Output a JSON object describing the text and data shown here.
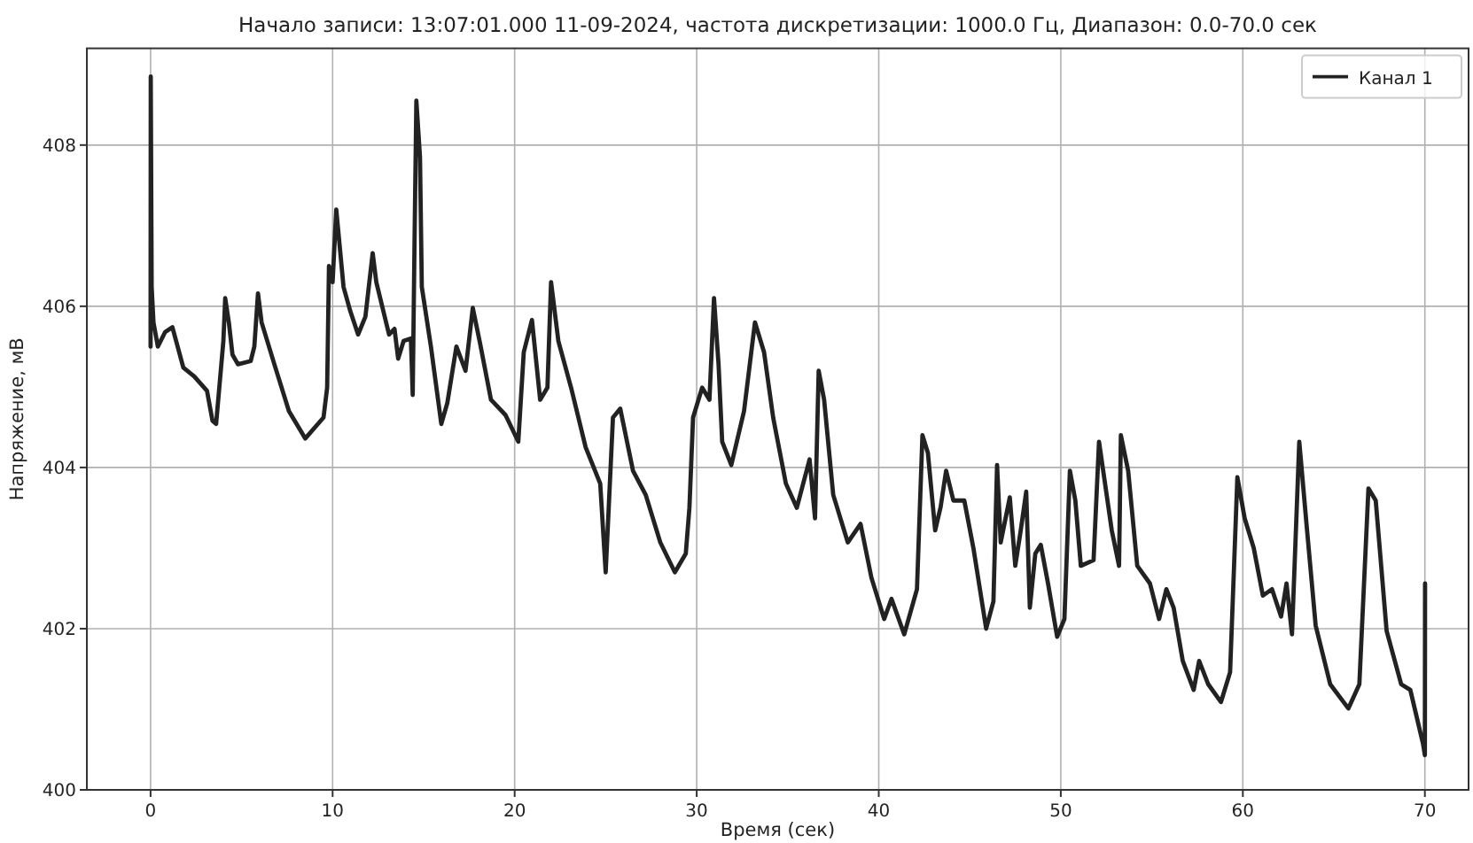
{
  "chart_data": {
    "type": "line",
    "title": "Начало записи: 13:07:01.000 11-09-2024, частота дискретизации: 1000.0 Гц, Диапазон: 0.0-70.0 сек",
    "xlabel": "Время (сек)",
    "ylabel": "Напряжение, мВ",
    "xlim": [
      -3.5,
      72.4
    ],
    "ylim": [
      400,
      409.2
    ],
    "xticks": [
      0,
      10,
      20,
      30,
      40,
      50,
      60,
      70
    ],
    "yticks": [
      400,
      402,
      404,
      406,
      408
    ],
    "grid": true,
    "legend": "top right",
    "line_style": "solid",
    "series": [
      {
        "name": "Канал 1",
        "color": "#222222",
        "x": [
          0,
          0.01,
          0.06,
          0.16,
          0.4,
          0.8,
          1.2,
          1.8,
          2.4,
          3.1,
          3.4,
          3.6,
          4.0,
          4.1,
          4.3,
          4.5,
          4.8,
          5.5,
          5.7,
          5.9,
          6.1,
          6.8,
          7.6,
          8.5,
          9.5,
          9.7,
          9.8,
          10.0,
          10.2,
          10.6,
          10.97,
          11.4,
          11.8,
          12.2,
          12.4,
          13.1,
          13.4,
          13.6,
          13.9,
          14.3,
          14.4,
          14.5,
          14.6,
          14.8,
          14.9,
          15.4,
          15.97,
          16.3,
          16.8,
          17.3,
          17.7,
          18.1,
          18.7,
          19.5,
          20.2,
          20.5,
          20.95,
          21.4,
          21.8,
          22.0,
          22.4,
          23.1,
          23.9,
          24.7,
          25.0,
          25.2,
          25.4,
          25.8,
          26.5,
          27.2,
          28.0,
          28.8,
          29.4,
          29.6,
          29.8,
          30.3,
          30.7,
          30.95,
          31.2,
          31.4,
          31.9,
          32.6,
          33.2,
          33.7,
          34.2,
          34.9,
          35.5,
          36.2,
          36.5,
          36.7,
          37.0,
          37.5,
          38.3,
          39.0,
          39.6,
          40.3,
          40.7,
          41.4,
          42.1,
          42.4,
          42.7,
          43.1,
          43.4,
          43.7,
          44.1,
          44.7,
          45.2,
          45.9,
          46.3,
          46.5,
          46.7,
          47.2,
          47.5,
          47.8,
          48.1,
          48.3,
          48.6,
          48.9,
          49.3,
          49.8,
          50.2,
          50.5,
          50.8,
          51.1,
          51.8,
          52.1,
          52.8,
          53.2,
          53.3,
          53.7,
          54.2,
          54.9,
          55.4,
          55.8,
          56.2,
          56.7,
          57.3,
          57.6,
          58.1,
          58.8,
          59.3,
          59.7,
          60.1,
          60.6,
          61.1,
          61.6,
          62.1,
          62.4,
          62.7,
          63.1,
          63.5,
          64.0,
          64.8,
          65.8,
          66.4,
          66.9,
          67.3,
          67.9,
          68.7,
          69.2,
          69.9,
          70.0,
          70.01
        ],
        "values": [
          405.5,
          408.85,
          406.24,
          405.8,
          405.5,
          405.68,
          405.74,
          405.24,
          405.13,
          404.95,
          404.58,
          404.54,
          405.57,
          406.1,
          405.8,
          405.4,
          405.28,
          405.32,
          405.5,
          406.16,
          405.8,
          405.28,
          404.7,
          404.36,
          404.62,
          404.99,
          406.5,
          406.3,
          407.2,
          406.24,
          405.94,
          405.65,
          405.87,
          406.66,
          406.3,
          405.65,
          405.72,
          405.35,
          405.57,
          405.6,
          404.9,
          406.8,
          408.55,
          407.85,
          406.24,
          405.5,
          404.54,
          404.8,
          405.5,
          405.2,
          405.98,
          405.54,
          404.84,
          404.65,
          404.32,
          405.43,
          405.83,
          404.84,
          404.99,
          406.3,
          405.57,
          404.99,
          404.25,
          403.8,
          402.7,
          403.66,
          404.62,
          404.73,
          403.96,
          403.66,
          403.07,
          402.7,
          402.93,
          403.5,
          404.62,
          404.99,
          404.84,
          406.1,
          405.28,
          404.32,
          404.03,
          404.7,
          405.8,
          405.43,
          404.62,
          403.8,
          403.5,
          404.1,
          403.37,
          405.2,
          404.84,
          403.66,
          403.07,
          403.3,
          402.63,
          402.12,
          402.37,
          401.93,
          402.49,
          404.4,
          404.18,
          403.22,
          403.51,
          403.96,
          403.59,
          403.59,
          403.0,
          402.0,
          402.34,
          404.03,
          403.07,
          403.63,
          402.78,
          403.22,
          403.7,
          402.26,
          402.93,
          403.04,
          402.56,
          401.9,
          402.12,
          403.96,
          403.59,
          402.78,
          402.85,
          404.32,
          403.22,
          402.78,
          404.4,
          403.96,
          402.78,
          402.56,
          402.12,
          402.49,
          402.26,
          401.6,
          401.24,
          401.6,
          401.31,
          401.09,
          401.46,
          403.88,
          403.37,
          403.0,
          402.41,
          402.49,
          402.15,
          402.56,
          401.93,
          404.32,
          403.29,
          402.04,
          401.31,
          401.01,
          401.31,
          403.74,
          403.59,
          401.97,
          401.31,
          401.24,
          400.57,
          400.43,
          402.56
        ]
      }
    ]
  }
}
